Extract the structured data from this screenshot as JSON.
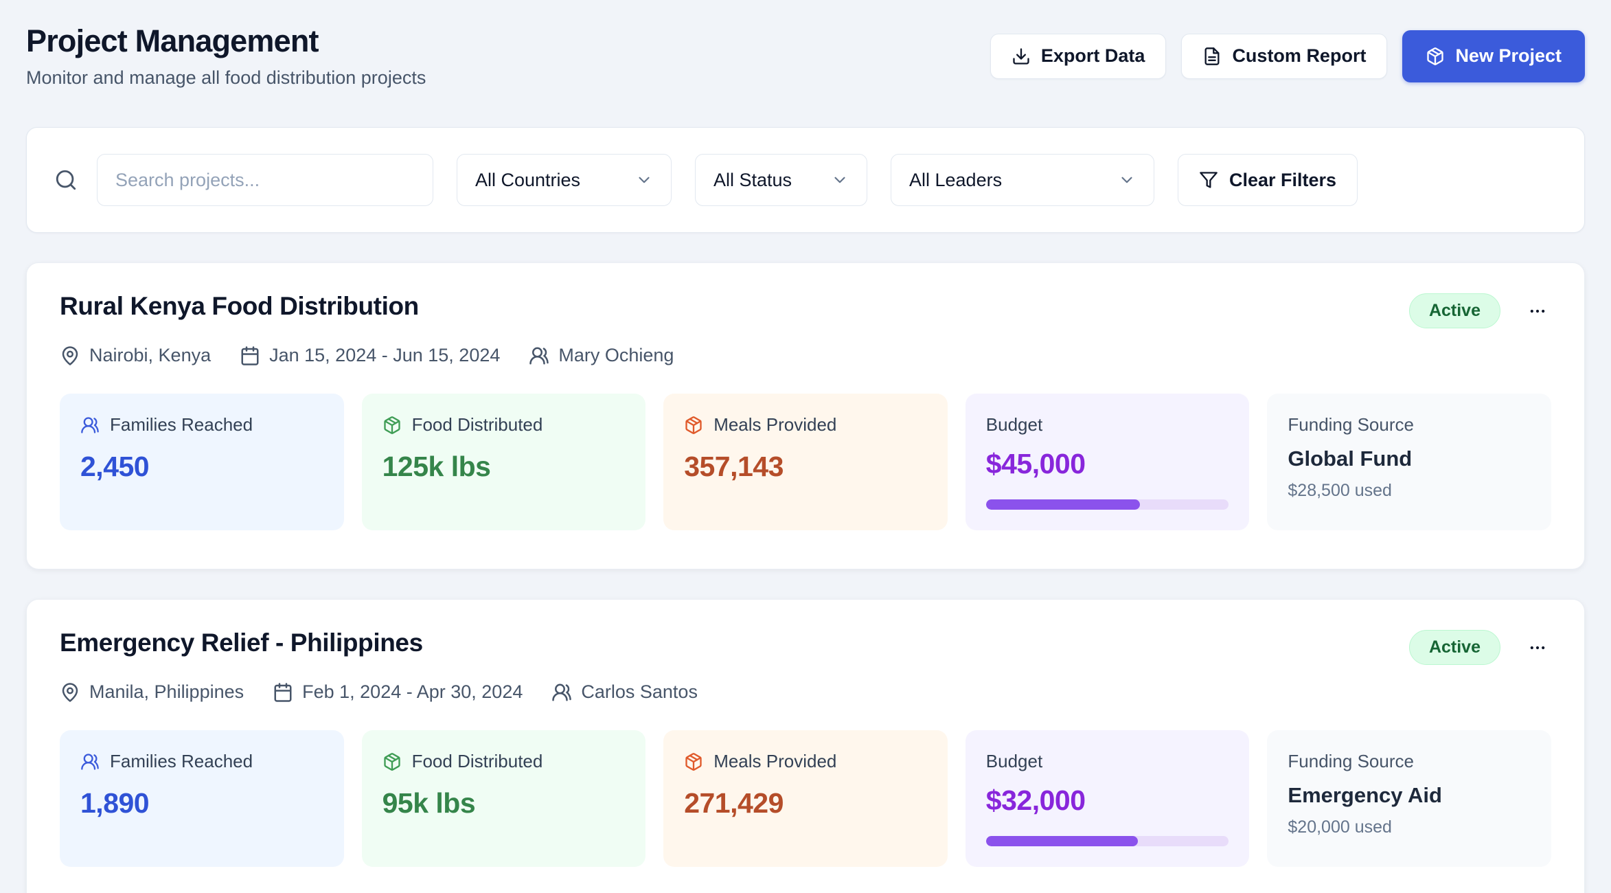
{
  "header": {
    "title": "Project Management",
    "subtitle": "Monitor and manage all food distribution projects",
    "export_button": "Export Data",
    "custom_report_button": "Custom Report",
    "new_project_button": "New Project"
  },
  "filters": {
    "search_placeholder": "Search projects...",
    "countries": "All Countries",
    "status": "All Status",
    "leaders": "All Leaders",
    "clear": "Clear Filters"
  },
  "labels": {
    "families": "Families Reached",
    "food": "Food Distributed",
    "meals": "Meals Provided",
    "budget": "Budget",
    "funding": "Funding Source"
  },
  "projects": [
    {
      "title": "Rural Kenya Food Distribution",
      "status": "Active",
      "location": "Nairobi, Kenya",
      "date_range": "Jan 15, 2024 - Jun 15, 2024",
      "leader": "Mary Ochieng",
      "families_reached": "2,450",
      "food_distributed": "125k lbs",
      "meals_provided": "357,143",
      "budget": "$45,000",
      "budget_used_pct": 63.3,
      "funding_source": "Global Fund",
      "funding_used": "$28,500 used"
    },
    {
      "title": "Emergency Relief - Philippines",
      "status": "Active",
      "location": "Manila, Philippines",
      "date_range": "Feb 1, 2024 - Apr 30, 2024",
      "leader": "Carlos Santos",
      "families_reached": "1,890",
      "food_distributed": "95k lbs",
      "meals_provided": "271,429",
      "budget": "$32,000",
      "budget_used_pct": 62.5,
      "funding_source": "Emergency Aid",
      "funding_used": "$20,000 used"
    }
  ],
  "colors": {
    "accent_blue": "#3B5BDB",
    "page_background": "#F1F4F9",
    "status_badge_bg": "#DCFCE7",
    "status_badge_text": "#166534",
    "families_value": "#2F52D6",
    "food_value": "#35854A",
    "meals_value": "#B54D29",
    "budget_value": "#8826DB",
    "progress_fill": "#8B52EC"
  }
}
